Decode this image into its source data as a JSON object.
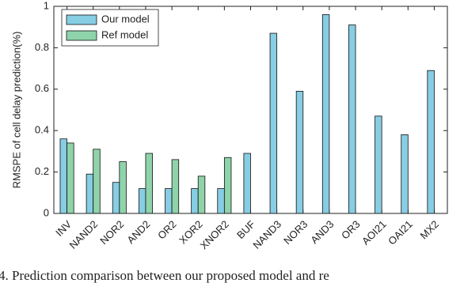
{
  "chart_data": {
    "type": "bar",
    "ylabel": "RMSPE of cell delay prediction(%)",
    "categories": [
      "INV",
      "NAND2",
      "NOR2",
      "AND2",
      "OR2",
      "XOR2",
      "XNOR2",
      "BUF",
      "NAND3",
      "NOR3",
      "AND3",
      "OR3",
      "AOI21",
      "OAI21",
      "MX2"
    ],
    "series": [
      {
        "name": "Our model",
        "color": "#87cde3",
        "values": [
          0.36,
          0.19,
          0.15,
          0.12,
          0.12,
          0.12,
          0.12,
          0.29,
          0.87,
          0.59,
          0.96,
          0.91,
          0.47,
          0.38,
          0.69
        ]
      },
      {
        "name": "Ref model",
        "color": "#8fd3aa",
        "values": [
          0.34,
          0.31,
          0.25,
          0.29,
          0.26,
          0.18,
          0.27,
          null,
          null,
          null,
          null,
          null,
          null,
          null,
          null
        ]
      }
    ],
    "ylim": [
      0,
      1
    ],
    "yticks": [
      0,
      0.2,
      0.4,
      0.6,
      0.8,
      1
    ],
    "grid": false,
    "legend": "upper left"
  },
  "caption": "4.   Prediction comparison between our proposed model and re"
}
